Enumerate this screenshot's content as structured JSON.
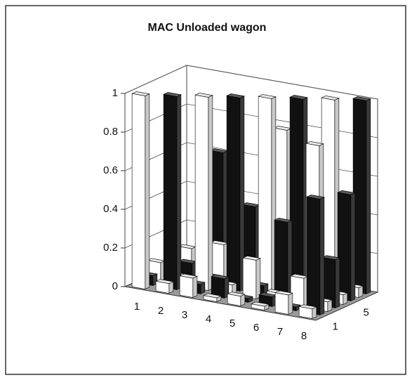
{
  "chart_data": {
    "type": "bar3d",
    "title": "MAC Unloaded wagon",
    "categories": [
      "1",
      "2",
      "3",
      "4",
      "5",
      "6",
      "7",
      "8"
    ],
    "depth_categories": [
      "1",
      null,
      null,
      null,
      "5",
      null,
      null,
      null
    ],
    "series": [
      {
        "color": "#ffffff",
        "values": [
          1,
          0.05,
          0.1,
          0.02,
          0.05,
          0.02,
          0.1,
          0.05
        ]
      },
      {
        "color": "#111111",
        "values": [
          0.05,
          1,
          0.05,
          0.1,
          0.02,
          0.05,
          0.02,
          0.6
        ]
      },
      {
        "color": "#ffffff",
        "values": [
          0.1,
          0.05,
          1,
          0.05,
          0.2,
          0.05,
          0.15,
          0.05
        ]
      },
      {
        "color": "#111111",
        "values": [
          0.02,
          0.1,
          0.05,
          1,
          0.05,
          0.4,
          0.05,
          0.25
        ]
      },
      {
        "color": "#ffffff",
        "values": [
          0.05,
          0.02,
          0.2,
          0.05,
          1,
          0.05,
          0.8,
          0.05
        ]
      },
      {
        "color": "#111111",
        "values": [
          0.02,
          0.05,
          0.05,
          0.4,
          0.05,
          1,
          0.05,
          0.55
        ]
      },
      {
        "color": "#ffffff",
        "values": [
          0.1,
          0.02,
          0.15,
          0.05,
          0.8,
          0.05,
          1,
          0.05
        ]
      },
      {
        "color": "#111111",
        "values": [
          0.05,
          0.6,
          0.05,
          0.25,
          0.05,
          0.55,
          0.05,
          1
        ]
      }
    ],
    "ylim": [
      0,
      1
    ],
    "yticks": [
      0,
      0.2,
      0.4,
      0.6,
      0.8,
      1
    ],
    "grid": true
  }
}
